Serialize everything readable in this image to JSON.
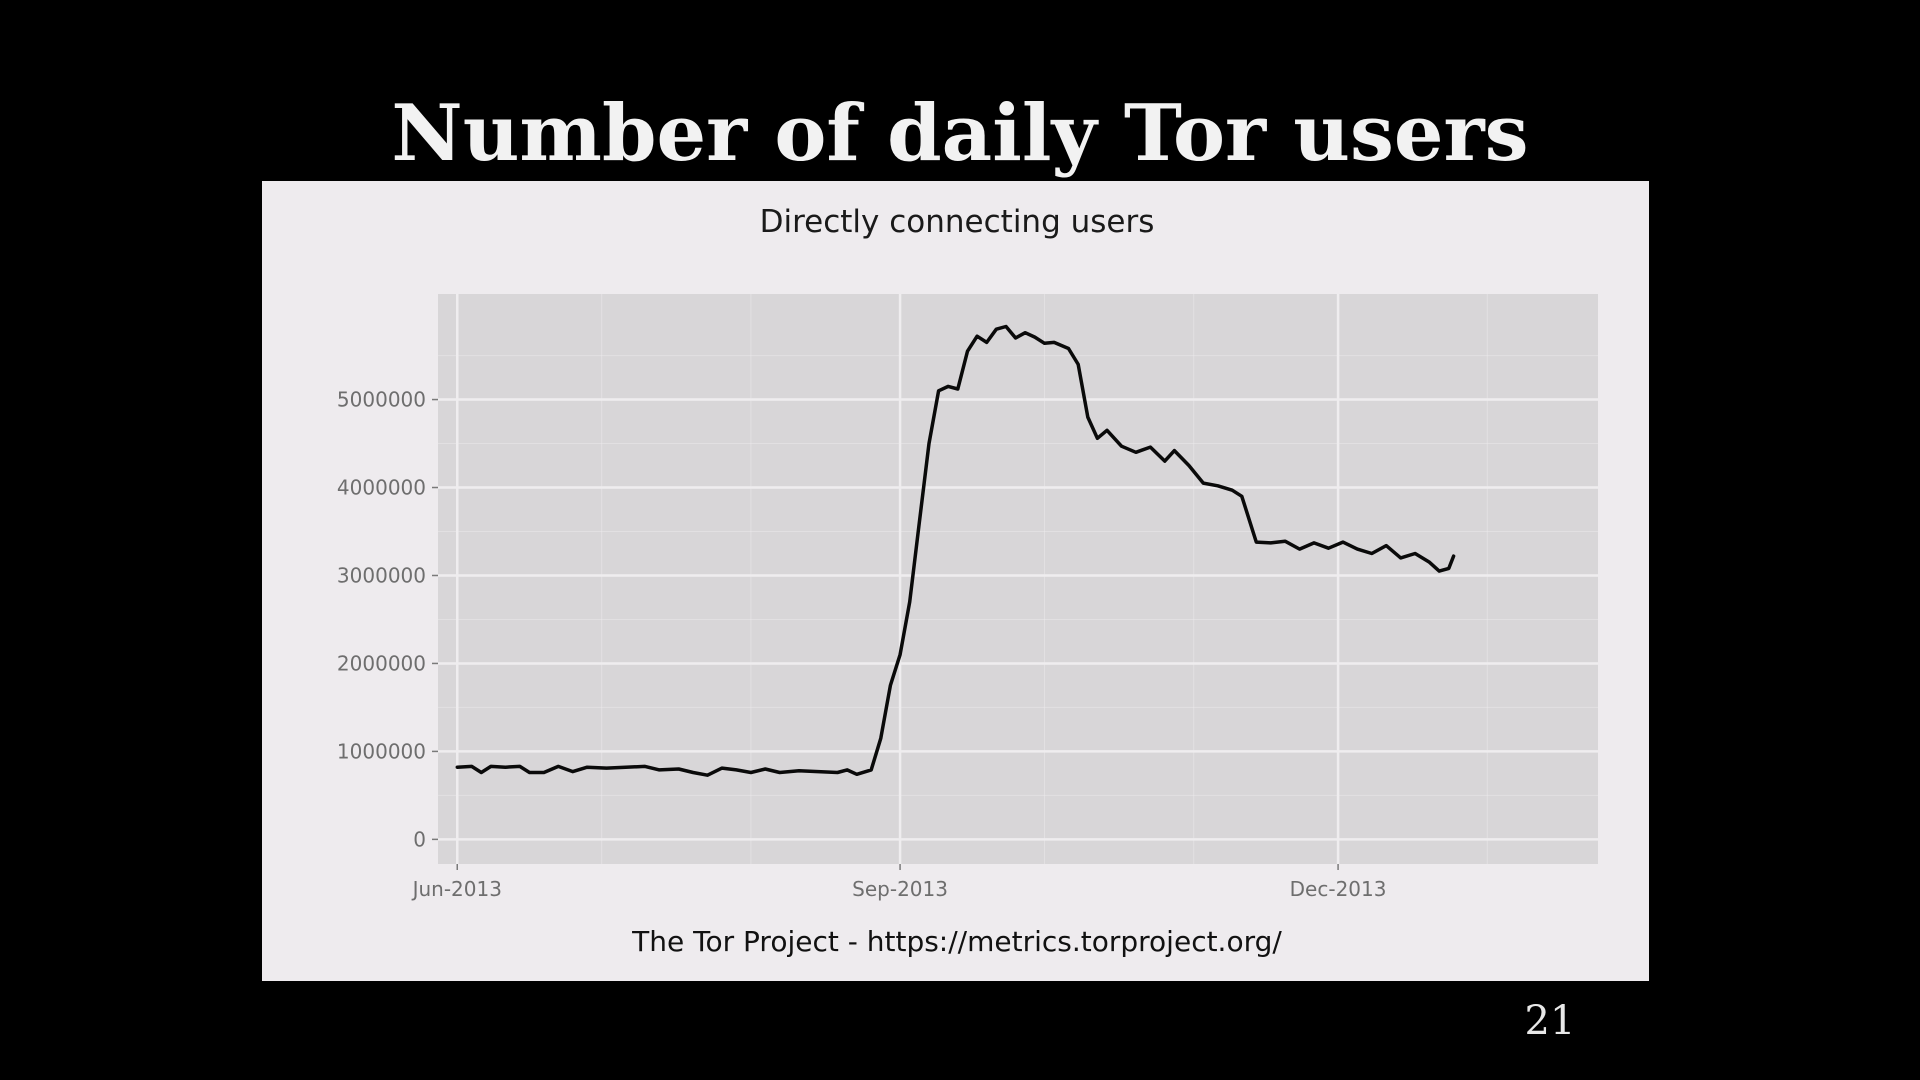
{
  "slide": {
    "title": "Number of daily Tor users",
    "page_number": "21"
  },
  "colors": {
    "background": "#000000",
    "card": "#eeebee",
    "panel": "#d8d6d8",
    "grid": "#efedef",
    "line": "#0a0a0a",
    "text": "#f2f2f2"
  },
  "chart_data": {
    "type": "line",
    "title": "Directly connecting users",
    "caption": "The Tor Project - https://metrics.torproject.org/",
    "xlabel": "",
    "ylabel": "",
    "grid": true,
    "legend": "none",
    "xlim": [
      "2013-05-28",
      "2014-01-24"
    ],
    "ylim": [
      -280000,
      6200000
    ],
    "x_ticks": [
      {
        "date": "2013-06-01",
        "label": "Jun-2013"
      },
      {
        "date": "2013-09-01",
        "label": "Sep-2013"
      },
      {
        "date": "2013-12-01",
        "label": "Dec-2013"
      }
    ],
    "y_ticks": [
      {
        "value": 0,
        "label": "0"
      },
      {
        "value": 1000000,
        "label": "1000000"
      },
      {
        "value": 2000000,
        "label": "2000000"
      },
      {
        "value": 3000000,
        "label": "3000000"
      },
      {
        "value": 4000000,
        "label": "4000000"
      },
      {
        "value": 5000000,
        "label": "5000000"
      }
    ],
    "series": [
      {
        "points": [
          [
            "2013-06-01",
            820000
          ],
          [
            "2013-06-04",
            830000
          ],
          [
            "2013-06-06",
            760000
          ],
          [
            "2013-06-08",
            830000
          ],
          [
            "2013-06-11",
            820000
          ],
          [
            "2013-06-14",
            830000
          ],
          [
            "2013-06-16",
            760000
          ],
          [
            "2013-06-19",
            760000
          ],
          [
            "2013-06-22",
            830000
          ],
          [
            "2013-06-25",
            770000
          ],
          [
            "2013-06-28",
            820000
          ],
          [
            "2013-07-02",
            810000
          ],
          [
            "2013-07-06",
            820000
          ],
          [
            "2013-07-10",
            830000
          ],
          [
            "2013-07-13",
            790000
          ],
          [
            "2013-07-17",
            800000
          ],
          [
            "2013-07-20",
            760000
          ],
          [
            "2013-07-23",
            730000
          ],
          [
            "2013-07-26",
            810000
          ],
          [
            "2013-07-29",
            790000
          ],
          [
            "2013-08-01",
            760000
          ],
          [
            "2013-08-04",
            800000
          ],
          [
            "2013-08-07",
            760000
          ],
          [
            "2013-08-11",
            780000
          ],
          [
            "2013-08-15",
            770000
          ],
          [
            "2013-08-19",
            760000
          ],
          [
            "2013-08-21",
            790000
          ],
          [
            "2013-08-23",
            740000
          ],
          [
            "2013-08-26",
            790000
          ],
          [
            "2013-08-28",
            1150000
          ],
          [
            "2013-08-30",
            1750000
          ],
          [
            "2013-09-01",
            2100000
          ],
          [
            "2013-09-03",
            2700000
          ],
          [
            "2013-09-05",
            3600000
          ],
          [
            "2013-09-07",
            4500000
          ],
          [
            "2013-09-09",
            5100000
          ],
          [
            "2013-09-11",
            5150000
          ],
          [
            "2013-09-13",
            5120000
          ],
          [
            "2013-09-15",
            5550000
          ],
          [
            "2013-09-17",
            5720000
          ],
          [
            "2013-09-19",
            5650000
          ],
          [
            "2013-09-21",
            5800000
          ],
          [
            "2013-09-23",
            5830000
          ],
          [
            "2013-09-25",
            5700000
          ],
          [
            "2013-09-27",
            5760000
          ],
          [
            "2013-09-29",
            5710000
          ],
          [
            "2013-10-01",
            5640000
          ],
          [
            "2013-10-03",
            5650000
          ],
          [
            "2013-10-06",
            5580000
          ],
          [
            "2013-10-08",
            5400000
          ],
          [
            "2013-10-10",
            4800000
          ],
          [
            "2013-10-12",
            4560000
          ],
          [
            "2013-10-14",
            4650000
          ],
          [
            "2013-10-17",
            4470000
          ],
          [
            "2013-10-20",
            4400000
          ],
          [
            "2013-10-23",
            4460000
          ],
          [
            "2013-10-26",
            4300000
          ],
          [
            "2013-10-28",
            4420000
          ],
          [
            "2013-10-31",
            4250000
          ],
          [
            "2013-11-03",
            4050000
          ],
          [
            "2013-11-06",
            4020000
          ],
          [
            "2013-11-09",
            3970000
          ],
          [
            "2013-11-11",
            3900000
          ],
          [
            "2013-11-14",
            3380000
          ],
          [
            "2013-11-17",
            3370000
          ],
          [
            "2013-11-20",
            3390000
          ],
          [
            "2013-11-23",
            3300000
          ],
          [
            "2013-11-26",
            3370000
          ],
          [
            "2013-11-29",
            3310000
          ],
          [
            "2013-12-02",
            3380000
          ],
          [
            "2013-12-05",
            3300000
          ],
          [
            "2013-12-08",
            3250000
          ],
          [
            "2013-12-11",
            3340000
          ],
          [
            "2013-12-14",
            3200000
          ],
          [
            "2013-12-17",
            3250000
          ],
          [
            "2013-12-20",
            3150000
          ],
          [
            "2013-12-22",
            3050000
          ],
          [
            "2013-12-24",
            3080000
          ],
          [
            "2013-12-25",
            3220000
          ]
        ]
      }
    ]
  }
}
